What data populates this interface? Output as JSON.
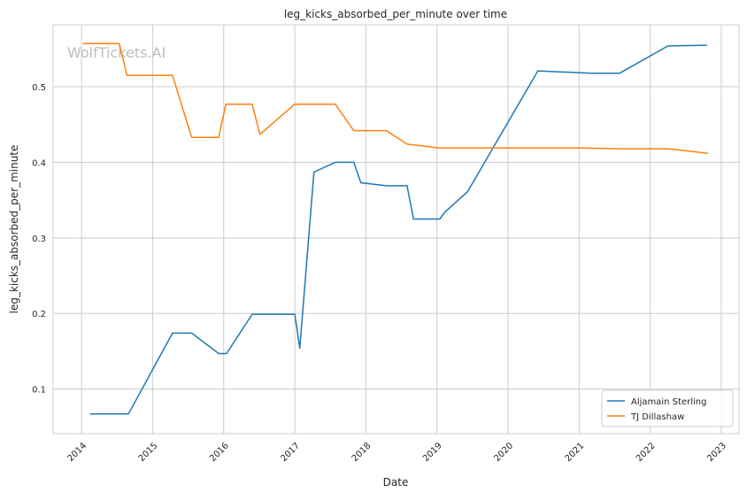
{
  "chart_data": {
    "type": "line",
    "title": "leg_kicks_absorbed_per_minute over time",
    "xlabel": "Date",
    "ylabel": "leg_kicks_absorbed_per_minute",
    "watermark": "WolfTickets.AI",
    "xlim": [
      2013.6,
      2023.25
    ],
    "ylim": [
      0.041,
      0.582
    ],
    "x_ticks": [
      2014,
      2015,
      2016,
      2017,
      2018,
      2019,
      2020,
      2021,
      2022,
      2023
    ],
    "x_tick_labels": [
      "2014",
      "2015",
      "2016",
      "2017",
      "2018",
      "2019",
      "2020",
      "2021",
      "2022",
      "2023"
    ],
    "y_ticks": [
      0.1,
      0.2,
      0.3,
      0.4,
      0.5
    ],
    "y_tick_labels": [
      "0.1",
      "0.2",
      "0.3",
      "0.4",
      "0.5"
    ],
    "grid": true,
    "legend_position": "bottom-right",
    "series": [
      {
        "name": "Aljamain Sterling",
        "color": "#1f77b4",
        "x": [
          2014.12,
          2014.66,
          2015.28,
          2015.55,
          2015.93,
          2016.04,
          2016.4,
          2017.0,
          2017.07,
          2017.27,
          2017.57,
          2017.83,
          2017.93,
          2018.29,
          2018.58,
          2018.67,
          2019.04,
          2019.11,
          2019.43,
          2020.42,
          2021.17,
          2021.57,
          2022.25,
          2022.8
        ],
        "y": [
          0.067,
          0.067,
          0.174,
          0.174,
          0.147,
          0.147,
          0.199,
          0.199,
          0.154,
          0.387,
          0.4,
          0.4,
          0.373,
          0.369,
          0.369,
          0.325,
          0.325,
          0.334,
          0.361,
          0.521,
          0.518,
          0.518,
          0.554,
          0.555
        ]
      },
      {
        "name": "TJ Dillashaw",
        "color": "#ff7f0e",
        "x": [
          2014.02,
          2014.53,
          2014.64,
          2015.28,
          2015.55,
          2015.93,
          2016.03,
          2016.4,
          2016.51,
          2017.0,
          2017.57,
          2017.83,
          2018.29,
          2018.58,
          2019.04,
          2021.01,
          2021.57,
          2022.25,
          2022.81
        ],
        "y": [
          0.557,
          0.557,
          0.515,
          0.515,
          0.433,
          0.433,
          0.477,
          0.477,
          0.437,
          0.477,
          0.477,
          0.442,
          0.442,
          0.424,
          0.419,
          0.419,
          0.418,
          0.418,
          0.412
        ]
      }
    ]
  }
}
